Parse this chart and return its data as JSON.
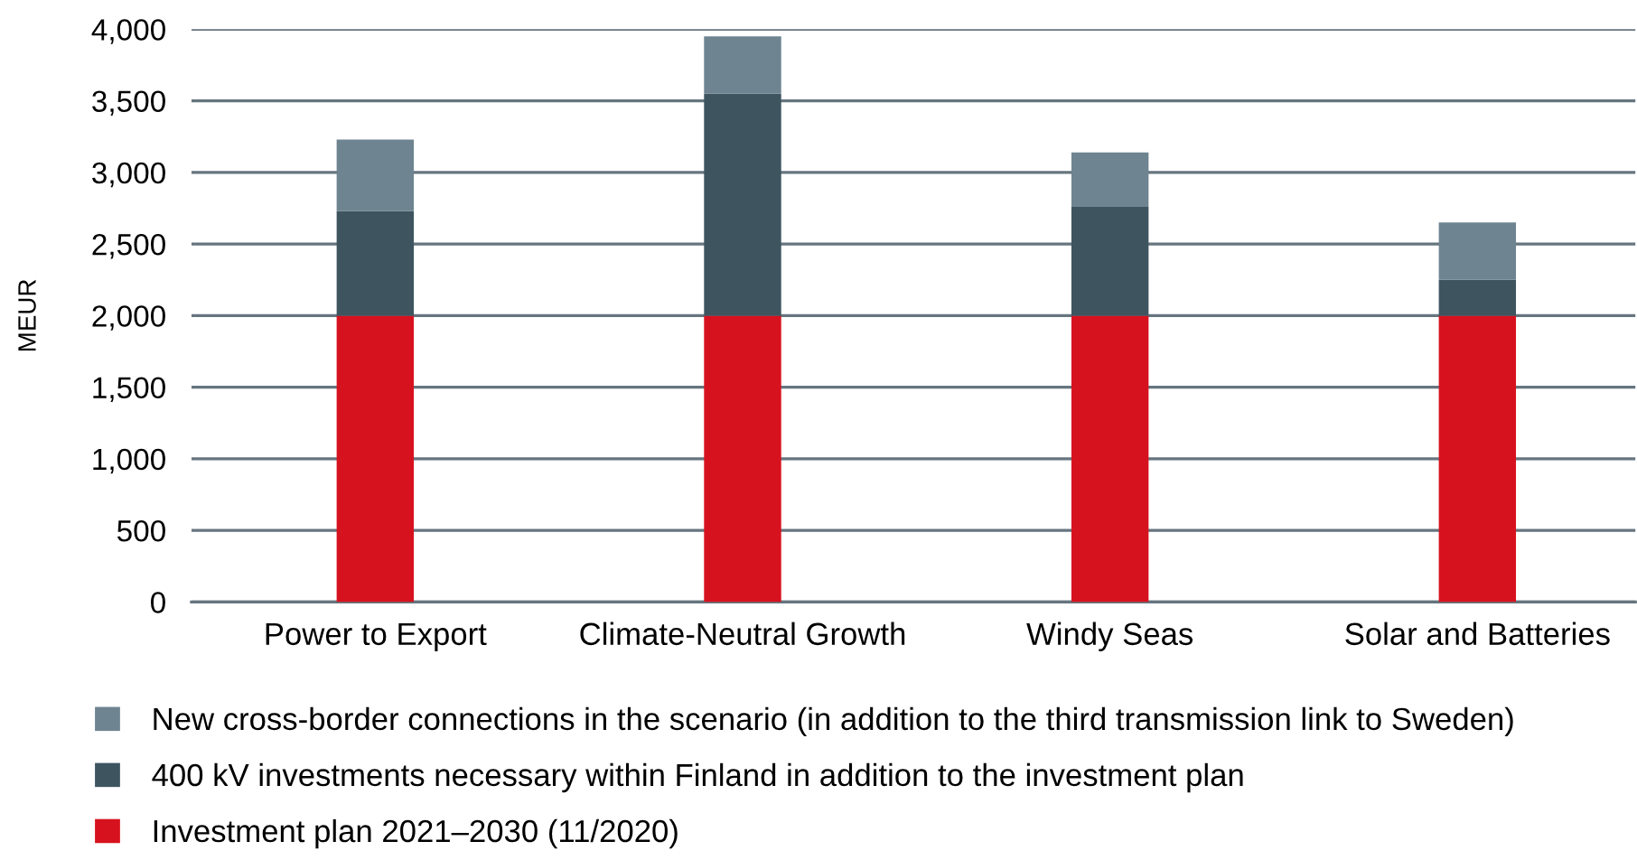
{
  "chart_data": {
    "type": "bar",
    "stacked": true,
    "ylabel": "MEUR",
    "categories": [
      "Power to Export",
      "Climate-Neutral Growth",
      "Windy Seas",
      "Solar and Batteries"
    ],
    "series": [
      {
        "name": "Investment plan 2021–2030 (11/2020)",
        "color": "#d7121f",
        "values": [
          2000,
          2000,
          2000,
          2000
        ]
      },
      {
        "name": "400 kV investments necessary within Finland in addition to the investment plan",
        "color": "#3e5560",
        "values": [
          730,
          1550,
          760,
          250
        ]
      },
      {
        "name": "New cross-border connections in the scenario (in addition to the third transmission link to Sweden)",
        "color": "#6e8490",
        "values": [
          500,
          400,
          380,
          400
        ]
      }
    ],
    "ylim": [
      0,
      4000
    ],
    "yticks": [
      {
        "value": 0,
        "label": "0"
      },
      {
        "value": 500,
        "label": "500"
      },
      {
        "value": 1000,
        "label": "1,000"
      },
      {
        "value": 1500,
        "label": "1,500"
      },
      {
        "value": 2000,
        "label": "2,000"
      },
      {
        "value": 2500,
        "label": "2,500"
      },
      {
        "value": 3000,
        "label": "3,000"
      },
      {
        "value": 3500,
        "label": "3,500"
      },
      {
        "value": 4000,
        "label": "4,000"
      }
    ],
    "grid": "y",
    "legend": "bottom"
  }
}
